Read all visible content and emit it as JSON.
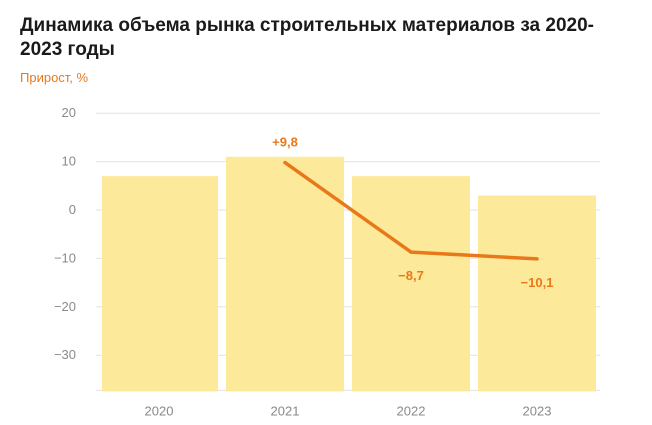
{
  "title": "Динамика объема рынка строительных материалов за 2020-2023 годы",
  "subtitle": "Прирост, %",
  "colors": {
    "bar": "#fde99a",
    "line": "#e8791a",
    "grid": "#e2e2e2",
    "axis_text": "#8a8a8a"
  },
  "chart_data": {
    "type": "bar",
    "title": "Динамика объема рынка строительных материалов за 2020-2023 годы",
    "ylabel": "Прирост, %",
    "categories": [
      "2020",
      "2021",
      "2022",
      "2023"
    ],
    "ylim": [
      -35,
      20
    ],
    "yticks": [
      20,
      10,
      0,
      -10,
      -20,
      -30
    ],
    "ytick_labels": [
      "20",
      "10",
      "0",
      "−10",
      "−20",
      "−30"
    ],
    "grid": true,
    "series": [
      {
        "values": [
          7,
          11,
          7,
          3
        ],
        "kind": "bar"
      },
      {
        "values": [
          null,
          9.8,
          -8.7,
          -10.1
        ],
        "kind": "line",
        "labels": [
          null,
          "+9,8",
          "−8,7",
          "−10,1"
        ]
      }
    ]
  }
}
